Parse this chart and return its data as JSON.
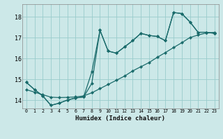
{
  "title": "",
  "xlabel": "Humidex (Indice chaleur)",
  "bg_color": "#cce8e8",
  "line_color": "#1a6b6b",
  "grid_color": "#99cccc",
  "xlim": [
    -0.5,
    23.5
  ],
  "ylim": [
    13.6,
    18.6
  ],
  "yticks": [
    14,
    15,
    16,
    17,
    18
  ],
  "xticks": [
    0,
    1,
    2,
    3,
    4,
    5,
    6,
    7,
    8,
    9,
    10,
    11,
    12,
    13,
    14,
    15,
    16,
    17,
    18,
    19,
    20,
    21,
    22,
    23
  ],
  "line1_x": [
    0,
    1,
    2,
    3,
    4,
    5,
    6,
    7,
    8,
    9,
    10,
    11,
    12,
    13,
    14,
    15,
    16,
    17,
    18,
    19,
    20,
    21,
    22,
    23
  ],
  "line1_y": [
    14.85,
    14.5,
    14.2,
    13.75,
    13.85,
    14.0,
    14.1,
    14.15,
    14.8,
    17.35,
    16.35,
    16.25,
    16.55,
    16.85,
    17.2,
    17.1,
    17.05,
    16.85,
    18.2,
    18.15,
    17.75,
    17.25,
    17.25,
    17.2
  ],
  "line2_x": [
    0,
    1,
    2,
    3,
    4,
    5,
    6,
    7,
    8,
    9,
    10,
    11,
    12,
    13,
    14,
    15,
    16,
    17,
    18,
    19,
    20,
    21,
    22,
    23
  ],
  "line2_y": [
    14.85,
    14.5,
    14.2,
    13.75,
    13.85,
    14.0,
    14.1,
    14.15,
    15.35,
    17.35,
    16.35,
    16.25,
    16.55,
    16.85,
    17.2,
    17.1,
    17.05,
    16.85,
    18.2,
    18.15,
    17.75,
    17.25,
    17.25,
    17.2
  ],
  "line3_x": [
    0,
    1,
    2,
    3,
    4,
    5,
    6,
    7,
    8,
    9,
    10,
    11,
    12,
    13,
    14,
    15,
    16,
    17,
    18,
    19,
    20,
    21,
    22,
    23
  ],
  "line3_y": [
    14.5,
    14.38,
    14.26,
    14.14,
    14.12,
    14.13,
    14.15,
    14.2,
    14.35,
    14.55,
    14.75,
    14.95,
    15.15,
    15.4,
    15.6,
    15.8,
    16.05,
    16.28,
    16.52,
    16.75,
    17.0,
    17.12,
    17.22,
    17.25
  ]
}
